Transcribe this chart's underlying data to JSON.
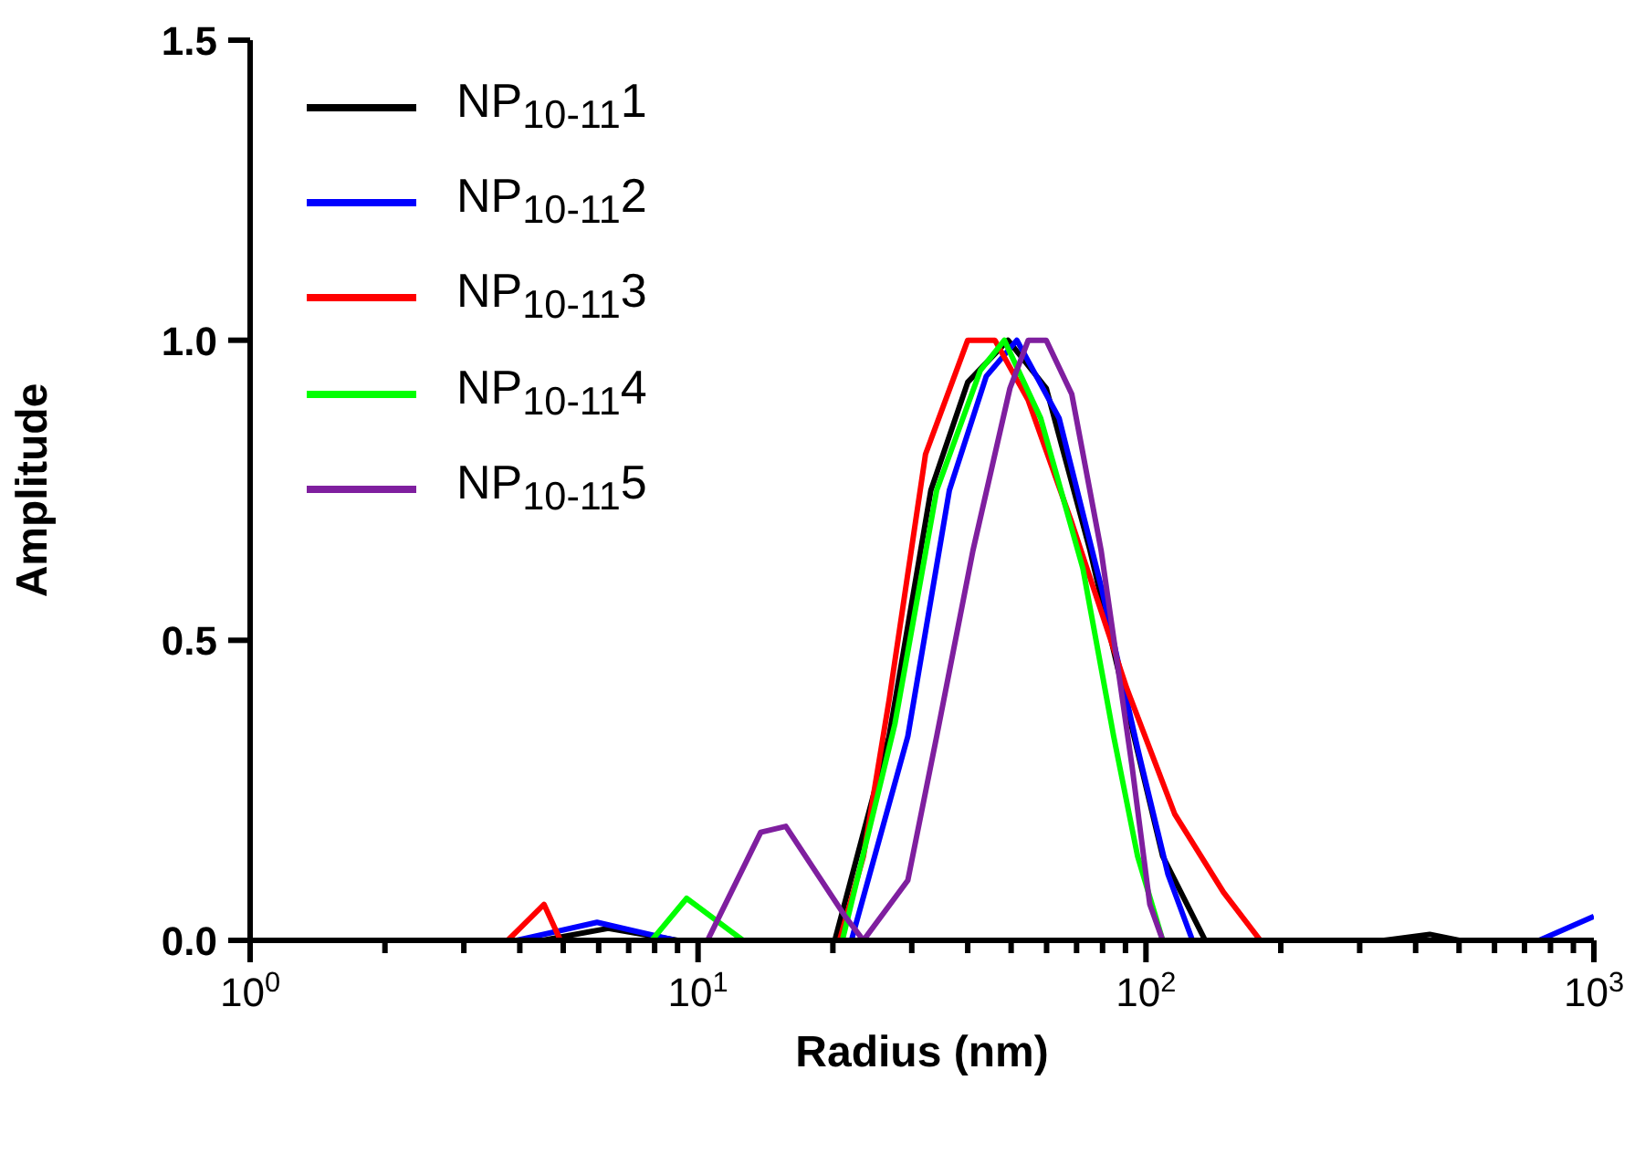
{
  "chart_data": {
    "type": "line",
    "xlabel": "Radius (nm)",
    "ylabel": "Amplitude",
    "log": "x",
    "xlim": [
      1,
      1000
    ],
    "ylim": [
      0,
      1.5
    ],
    "xticks": [
      {
        "value": 1,
        "label": "10$^{0}$"
      },
      {
        "value": 2,
        "label": null
      },
      {
        "value": 3,
        "label": null
      },
      {
        "value": 4,
        "label": null
      },
      {
        "value": 5,
        "label": null
      },
      {
        "value": 6,
        "label": null
      },
      {
        "value": 7,
        "label": null
      },
      {
        "value": 8,
        "label": null
      },
      {
        "value": 9,
        "label": null
      },
      {
        "value": 10,
        "label": "10$^{1}$"
      },
      {
        "value": 20,
        "label": null
      },
      {
        "value": 30,
        "label": null
      },
      {
        "value": 40,
        "label": null
      },
      {
        "value": 50,
        "label": null
      },
      {
        "value": 60,
        "label": null
      },
      {
        "value": 70,
        "label": null
      },
      {
        "value": 80,
        "label": null
      },
      {
        "value": 90,
        "label": null
      },
      {
        "value": 100,
        "label": "10$^{2}$"
      },
      {
        "value": 200,
        "label": null
      },
      {
        "value": 300,
        "label": null
      },
      {
        "value": 400,
        "label": null
      },
      {
        "value": 500,
        "label": null
      },
      {
        "value": 600,
        "label": null
      },
      {
        "value": 700,
        "label": null
      },
      {
        "value": 800,
        "label": null
      },
      {
        "value": 900,
        "label": null
      },
      {
        "value": 1000,
        "label": "10$^{3}$"
      }
    ],
    "yticks": [
      {
        "value": 0,
        "label": "0.0"
      },
      {
        "value": 0.5,
        "label": "0.5"
      },
      {
        "value": 1,
        "label": "1.0"
      },
      {
        "value": 1.5,
        "label": "1.5"
      }
    ],
    "legend": "top left",
    "marker": "none",
    "line_style": "solid",
    "series": [
      {
        "name": "NP$_{10-11}$1",
        "color": "#000000",
        "x": [
          1,
          4.5,
          6.3,
          9,
          20.2,
          26.7,
          33.1,
          40,
          49.2,
          59.9,
          75,
          90.6,
          109,
          135.6,
          340,
          430,
          500,
          1000
        ],
        "values": [
          0,
          0,
          0.02,
          0,
          0,
          0.34,
          0.75,
          0.93,
          1.0,
          0.92,
          0.65,
          0.39,
          0.14,
          0,
          0,
          0.01,
          0,
          0
        ]
      },
      {
        "name": "NP$_{10-11}$2",
        "color": "#0000ff",
        "x": [
          1,
          3.94,
          5.95,
          8.9,
          22,
          29.4,
          36.4,
          44,
          51.5,
          64,
          79.4,
          95.8,
          112,
          127,
          755,
          1000
        ],
        "values": [
          0,
          0,
          0.03,
          0,
          0,
          0.34,
          0.75,
          0.94,
          1.0,
          0.87,
          0.59,
          0.32,
          0.11,
          0,
          0,
          0.04
        ]
      },
      {
        "name": "NP$_{10-11}$3",
        "color": "#ff0000",
        "x": [
          1,
          3.76,
          4.53,
          4.93,
          20.7,
          23.4,
          26.7,
          32.2,
          40,
          46,
          54.6,
          68,
          90.6,
          116,
          149,
          180,
          1000
        ],
        "values": [
          0,
          0,
          0.06,
          0,
          0,
          0.14,
          0.4,
          0.81,
          1.0,
          1.0,
          0.9,
          0.7,
          0.42,
          0.21,
          0.08,
          0,
          0
        ]
      },
      {
        "name": "NP$_{10-11}$4",
        "color": "#00ff00",
        "x": [
          1,
          7.88,
          9.43,
          12.6,
          21,
          27.5,
          34.1,
          42.7,
          48.3,
          58.2,
          72.3,
          84.7,
          95.8,
          109,
          1000
        ],
        "values": [
          0,
          0,
          0.07,
          0,
          0,
          0.36,
          0.75,
          0.95,
          1.0,
          0.87,
          0.62,
          0.34,
          0.14,
          0,
          0
        ]
      },
      {
        "name": "NP$_{10-11}$5",
        "color": "#7f1f9f",
        "x": [
          1,
          10.5,
          13.8,
          15.7,
          21.3,
          23.4,
          29.4,
          34.1,
          41.1,
          49.7,
          54.6,
          59.9,
          68.3,
          79.4,
          93.1,
          102,
          109,
          1000
        ],
        "values": [
          0,
          0,
          0.18,
          0.19,
          0.04,
          0,
          0.1,
          0.34,
          0.65,
          0.92,
          1.0,
          1.0,
          0.91,
          0.65,
          0.29,
          0.06,
          0,
          0
        ]
      }
    ]
  }
}
